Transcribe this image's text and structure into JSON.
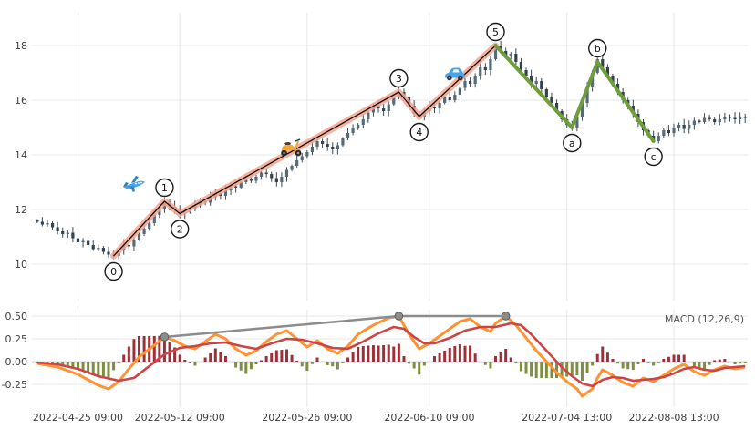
{
  "figure": {
    "background": "#ffffff",
    "grid_color": "#e7e7e7",
    "zero_line_color": "#d5d5d5",
    "tick_label_color": "#3d3d3d"
  },
  "chart_data": [
    {
      "type": "candlestick",
      "panel": "price",
      "ylim": [
        9.0,
        19.3
      ],
      "yticks": [
        18,
        16,
        14,
        12,
        10
      ],
      "x_tick_labels": [
        "2022-04-25 09:00",
        "2022-05-12 09:00",
        "2022-05-26 09:00",
        "2022-06-10 09:00",
        "2022-07-04 13:00",
        "2022-08-08 13:00"
      ],
      "x_tick_index": [
        8,
        28,
        53,
        77,
        104,
        125
      ],
      "open_first": 11.6,
      "closes": [
        11.55,
        11.45,
        11.5,
        11.35,
        11.2,
        11.1,
        11.15,
        10.95,
        10.8,
        10.85,
        10.7,
        10.55,
        10.6,
        10.45,
        10.35,
        10.3,
        10.5,
        10.7,
        10.65,
        10.9,
        11.1,
        11.3,
        11.5,
        11.8,
        12.0,
        12.3,
        12.1,
        12.0,
        11.85,
        11.9,
        12.0,
        12.15,
        12.3,
        12.25,
        12.45,
        12.6,
        12.5,
        12.7,
        12.85,
        12.8,
        13.0,
        13.1,
        13.05,
        13.2,
        13.35,
        13.3,
        13.15,
        13.0,
        13.2,
        13.45,
        13.6,
        13.8,
        13.95,
        14.1,
        14.3,
        14.5,
        14.4,
        14.3,
        14.2,
        14.35,
        14.6,
        14.8,
        15.0,
        15.1,
        15.3,
        15.55,
        15.8,
        15.7,
        15.6,
        15.85,
        16.1,
        16.3,
        16.1,
        15.8,
        15.5,
        15.4,
        15.6,
        15.75,
        15.7,
        15.9,
        16.1,
        16.0,
        16.2,
        16.45,
        16.7,
        16.6,
        16.9,
        17.2,
        17.1,
        17.5,
        18.0,
        17.8,
        17.6,
        17.7,
        17.4,
        17.1,
        16.9,
        16.6,
        16.7,
        16.4,
        16.1,
        15.9,
        15.6,
        15.3,
        15.1,
        15.0,
        15.4,
        15.9,
        16.5,
        17.0,
        17.5,
        17.2,
        16.9,
        16.6,
        16.3,
        16.0,
        15.8,
        15.5,
        15.2,
        14.9,
        14.7,
        14.5,
        14.7,
        14.9,
        14.8,
        15.0,
        15.1,
        14.95,
        15.1,
        15.25,
        15.2,
        15.35,
        15.3,
        15.2,
        15.3,
        15.4,
        15.35,
        15.3,
        15.4,
        15.35
      ],
      "candle_up_color": "#546a7d",
      "candle_down_color": "#33424f",
      "candle_wick_color": "#3a4a57",
      "elliott_wave": {
        "impulse_color_outer": "#f5a58e",
        "impulse_color_inner": "#111111",
        "corrective_color": "#6f9d3c",
        "impulse_labels": [
          "0",
          "1",
          "2",
          "3",
          "4",
          "5"
        ],
        "corrective_labels": [
          "5",
          "a",
          "b",
          "c"
        ],
        "points": [
          {
            "label": "0",
            "i": 15,
            "price": 10.3,
            "label_side": "below"
          },
          {
            "label": "1",
            "i": 25,
            "price": 12.3,
            "label_side": "above"
          },
          {
            "label": "2",
            "i": 28,
            "price": 11.85,
            "label_side": "below"
          },
          {
            "label": "3",
            "i": 71,
            "price": 16.3,
            "label_side": "above"
          },
          {
            "label": "4",
            "i": 75,
            "price": 15.4,
            "label_side": "below"
          },
          {
            "label": "5",
            "i": 90,
            "price": 18.0,
            "label_side": "above"
          },
          {
            "label": "a",
            "i": 105,
            "price": 15.0,
            "label_side": "below"
          },
          {
            "label": "b",
            "i": 110,
            "price": 17.4,
            "label_side": "above"
          },
          {
            "label": "c",
            "i": 121,
            "price": 14.5,
            "label_side": "below"
          }
        ]
      },
      "markers": [
        {
          "icon": "airplane",
          "i": 19,
          "price": 12.9
        },
        {
          "icon": "scooter",
          "i": 50,
          "price": 14.3
        },
        {
          "icon": "car",
          "i": 82,
          "price": 16.95
        }
      ]
    },
    {
      "type": "macd",
      "panel": "indicator",
      "legend": "MACD (12,26,9)",
      "ylim": [
        -0.5,
        0.62
      ],
      "yticks": [
        0.5,
        0.25,
        0.0,
        -0.25
      ],
      "macd_color": "#ff9233",
      "signal_color": "#cc4444",
      "hist_pos_color": "#9e3039",
      "hist_neg_color": "#7d8f3e",
      "macd_keypoints": [
        [
          0,
          -0.02
        ],
        [
          4,
          -0.06
        ],
        [
          8,
          -0.14
        ],
        [
          12,
          -0.26
        ],
        [
          14,
          -0.3
        ],
        [
          16,
          -0.22
        ],
        [
          18,
          -0.08
        ],
        [
          20,
          0.05
        ],
        [
          23,
          0.18
        ],
        [
          25,
          0.27
        ],
        [
          27,
          0.23
        ],
        [
          29,
          0.17
        ],
        [
          31,
          0.14
        ],
        [
          33,
          0.22
        ],
        [
          35,
          0.3
        ],
        [
          37,
          0.25
        ],
        [
          39,
          0.14
        ],
        [
          41,
          0.07
        ],
        [
          43,
          0.12
        ],
        [
          45,
          0.22
        ],
        [
          47,
          0.3
        ],
        [
          49,
          0.34
        ],
        [
          51,
          0.25
        ],
        [
          53,
          0.16
        ],
        [
          55,
          0.23
        ],
        [
          57,
          0.14
        ],
        [
          59,
          0.09
        ],
        [
          61,
          0.17
        ],
        [
          63,
          0.3
        ],
        [
          66,
          0.4
        ],
        [
          69,
          0.48
        ],
        [
          71,
          0.5
        ],
        [
          73,
          0.3
        ],
        [
          75,
          0.14
        ],
        [
          77,
          0.2
        ],
        [
          79,
          0.28
        ],
        [
          81,
          0.36
        ],
        [
          83,
          0.44
        ],
        [
          85,
          0.47
        ],
        [
          87,
          0.38
        ],
        [
          89,
          0.33
        ],
        [
          90,
          0.42
        ],
        [
          92,
          0.5
        ],
        [
          94,
          0.4
        ],
        [
          96,
          0.26
        ],
        [
          98,
          0.12
        ],
        [
          100,
          0.0
        ],
        [
          102,
          -0.12
        ],
        [
          104,
          -0.22
        ],
        [
          106,
          -0.3
        ],
        [
          107,
          -0.38
        ],
        [
          109,
          -0.3
        ],
        [
          110,
          -0.18
        ],
        [
          111,
          -0.09
        ],
        [
          113,
          -0.15
        ],
        [
          115,
          -0.23
        ],
        [
          117,
          -0.27
        ],
        [
          119,
          -0.18
        ],
        [
          121,
          -0.22
        ],
        [
          123,
          -0.15
        ],
        [
          125,
          -0.08
        ],
        [
          127,
          -0.03
        ],
        [
          129,
          -0.11
        ],
        [
          131,
          -0.15
        ],
        [
          133,
          -0.09
        ],
        [
          135,
          -0.05
        ],
        [
          137,
          -0.08
        ],
        [
          139,
          -0.06
        ]
      ],
      "signal_keypoints": [
        [
          0,
          -0.01
        ],
        [
          4,
          -0.03
        ],
        [
          8,
          -0.08
        ],
        [
          12,
          -0.16
        ],
        [
          16,
          -0.21
        ],
        [
          19,
          -0.18
        ],
        [
          22,
          -0.05
        ],
        [
          25,
          0.08
        ],
        [
          28,
          0.15
        ],
        [
          31,
          0.17
        ],
        [
          34,
          0.2
        ],
        [
          37,
          0.21
        ],
        [
          40,
          0.17
        ],
        [
          43,
          0.14
        ],
        [
          46,
          0.2
        ],
        [
          49,
          0.25
        ],
        [
          52,
          0.24
        ],
        [
          55,
          0.2
        ],
        [
          58,
          0.15
        ],
        [
          61,
          0.14
        ],
        [
          64,
          0.22
        ],
        [
          67,
          0.31
        ],
        [
          70,
          0.38
        ],
        [
          72,
          0.36
        ],
        [
          74,
          0.27
        ],
        [
          76,
          0.2
        ],
        [
          78,
          0.2
        ],
        [
          81,
          0.26
        ],
        [
          84,
          0.34
        ],
        [
          87,
          0.38
        ],
        [
          90,
          0.38
        ],
        [
          93,
          0.42
        ],
        [
          95,
          0.4
        ],
        [
          97,
          0.3
        ],
        [
          99,
          0.18
        ],
        [
          101,
          0.06
        ],
        [
          103,
          -0.06
        ],
        [
          105,
          -0.16
        ],
        [
          107,
          -0.24
        ],
        [
          109,
          -0.27
        ],
        [
          111,
          -0.2
        ],
        [
          113,
          -0.17
        ],
        [
          115,
          -0.18
        ],
        [
          117,
          -0.21
        ],
        [
          119,
          -0.2
        ],
        [
          121,
          -0.19
        ],
        [
          123,
          -0.17
        ],
        [
          125,
          -0.13
        ],
        [
          127,
          -0.08
        ],
        [
          129,
          -0.06
        ],
        [
          131,
          -0.09
        ],
        [
          133,
          -0.1
        ],
        [
          135,
          -0.07
        ],
        [
          137,
          -0.06
        ],
        [
          139,
          -0.05
        ]
      ],
      "divergence_line": {
        "color": "#8c8c8c",
        "dot_color": "#8c8c8c",
        "points": [
          [
            25,
            0.27
          ],
          [
            71,
            0.5
          ],
          [
            92,
            0.5
          ]
        ]
      }
    }
  ]
}
